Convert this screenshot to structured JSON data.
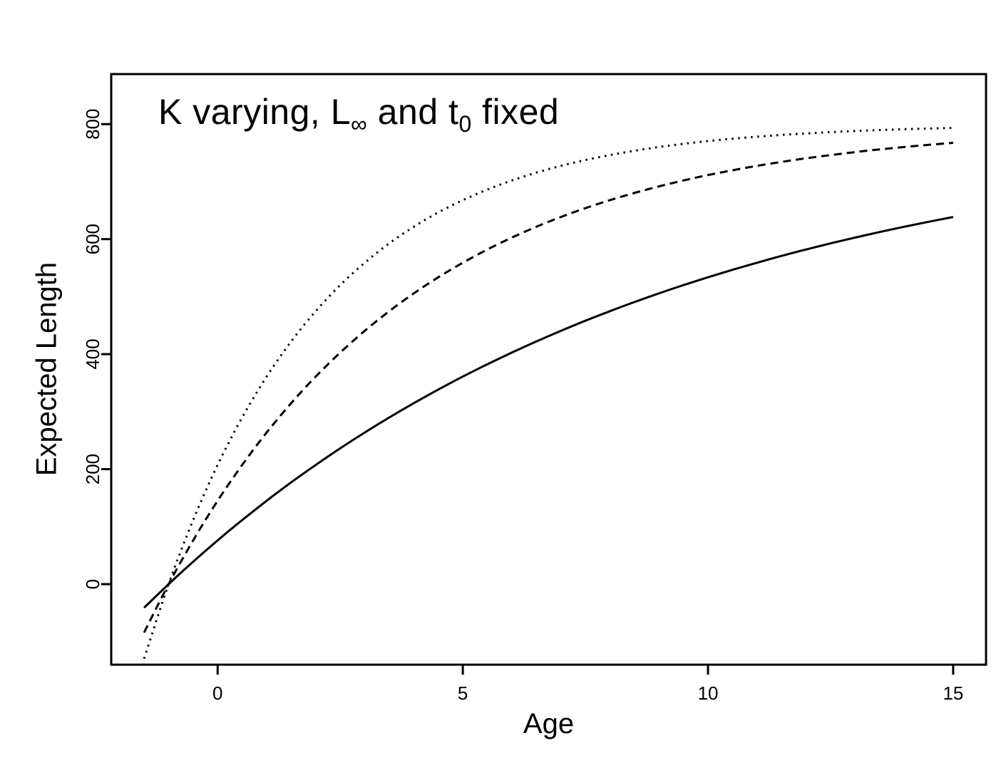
{
  "title": {
    "part1": "K varying, L",
    "sub1": "∞",
    "part2": " and t",
    "sub2": "0",
    "part3": " fixed"
  },
  "chart_data": {
    "type": "line",
    "title": "K varying, L∞ and t0 fixed",
    "xlabel": "Age",
    "ylabel": "Expected Length",
    "xlim": [
      -2.17,
      15.67
    ],
    "ylim": [
      -140,
      887
    ],
    "xticks": [
      0,
      5,
      10,
      15
    ],
    "xtick_labels": [
      "0",
      "5",
      "10",
      "15"
    ],
    "yticks": [
      0,
      200,
      400,
      600,
      800
    ],
    "ytick_labels": [
      "0",
      "200",
      "400",
      "600",
      "800"
    ],
    "grid": false,
    "legend": "none",
    "line_color": "#000000",
    "x": [
      -1.5,
      -1,
      -0.5,
      0,
      0.5,
      1,
      1.5,
      2,
      2.5,
      3,
      3.5,
      4,
      4.5,
      5,
      5.5,
      6,
      6.5,
      7,
      7.5,
      8,
      8.5,
      9,
      9.5,
      10,
      10.5,
      11,
      11.5,
      12,
      12.5,
      13,
      13.5,
      14,
      14.5,
      15
    ],
    "series": [
      {
        "name": "solid curve (slowest growth)",
        "line_style": "solid",
        "values": [
          -41.0,
          0,
          39.0,
          76.1,
          111.4,
          145.0,
          177.0,
          207.3,
          236.2,
          263.7,
          289.9,
          314.8,
          338.4,
          361.0,
          382.4,
          402.7,
          422.1,
          440.5,
          458.1,
          474.7,
          490.6,
          505.7,
          520.0,
          533.7,
          546.7,
          559.0,
          570.8,
          582.0,
          592.6,
          602.7,
          612.3,
          621.5,
          630.2,
          638.5
        ]
      },
      {
        "name": "dashed curve (intermediate growth)",
        "line_style": "dashed",
        "values": [
          -84.1,
          0,
          76.1,
          145.0,
          207.3,
          263.7,
          314.8,
          361.0,
          402.7,
          440.5,
          474.7,
          505.7,
          533.7,
          559.0,
          582.0,
          602.7,
          621.5,
          638.5,
          653.9,
          667.8,
          680.3,
          691.7,
          702.0,
          711.4,
          719.8,
          727.4,
          734.3,
          740.6,
          746.2,
          751.4,
          756.0,
          760.2,
          764.0,
          767.4
        ]
      },
      {
        "name": "dotted curve (fastest growth)",
        "line_style": "dotted",
        "values": [
          -129.5,
          0,
          111.4,
          207.3,
          289.9,
          361.0,
          422.1,
          474.7,
          520.0,
          559.0,
          592.6,
          621.5,
          646.4,
          667.8,
          686.2,
          702.0,
          715.7,
          727.4,
          737.5,
          746.2,
          753.7,
          760.2,
          765.7,
          770.5,
          774.6,
          778.1,
          781.2,
          783.8,
          786.1,
          788.0,
          789.7,
          791.1,
          792.4,
          793.4
        ]
      }
    ]
  }
}
